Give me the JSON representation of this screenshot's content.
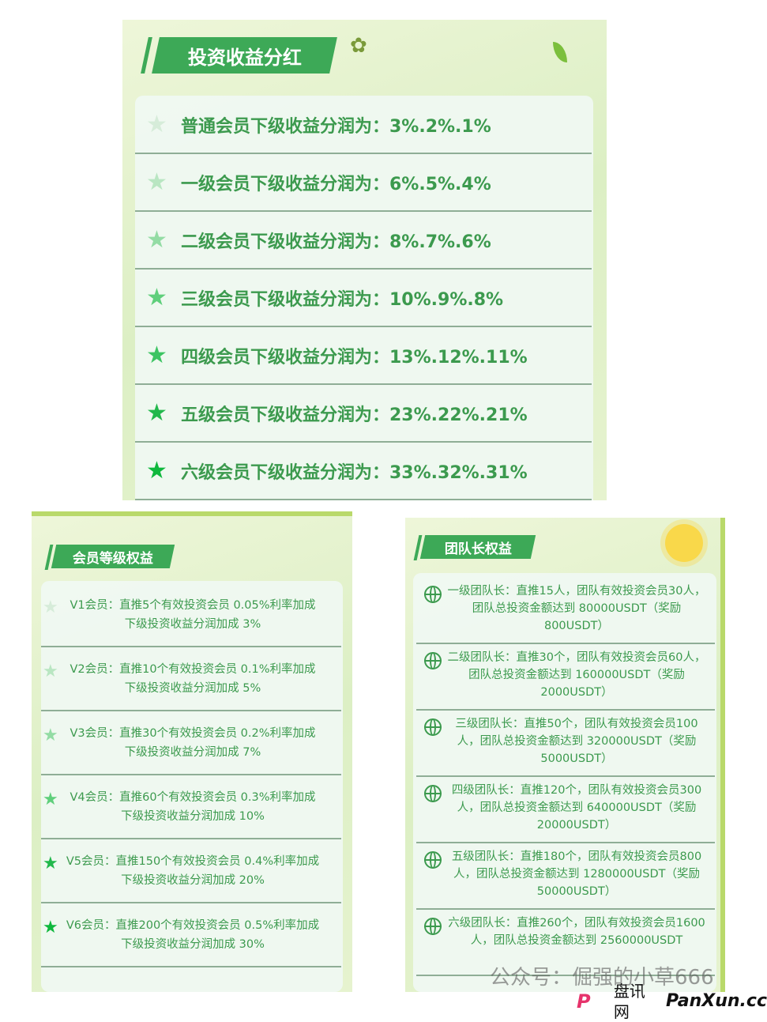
{
  "top_panel": {
    "title": "投资收益分红",
    "rows": [
      {
        "text": "普通会员下级收益分润为：3%.2%.1%",
        "star_color": "#d6ecd9"
      },
      {
        "text": "一级会员下级收益分润为：6%.5%.4%",
        "star_color": "#b9e6c2"
      },
      {
        "text": "二级会员下级收益分润为：8%.7%.6%",
        "star_color": "#93dca4"
      },
      {
        "text": "三级会员下级收益分润为：10%.9%.8%",
        "star_color": "#5fcf7b"
      },
      {
        "text": "四级会员下级收益分润为：13%.12%.11%",
        "star_color": "#3cc462"
      },
      {
        "text": "五级会员下级收益分润为：23%.22%.21%",
        "star_color": "#22b84c"
      },
      {
        "text": "六级会员下级收益分润为：33%.32%.31%",
        "star_color": "#0fb83d"
      }
    ]
  },
  "member_panel": {
    "title": "会员等级权益",
    "rows": [
      {
        "text": "V1会员：直推5个有效投资会员 0.05%利率加成　下级投资收益分润加成 3%",
        "star_color": "#d6ecd9"
      },
      {
        "text": "V2会员：直推10个有效投资会员 0.1%利率加成　下级投资收益分润加成 5%",
        "star_color": "#b9e6c2"
      },
      {
        "text": "V3会员：直推30个有效投资会员 0.2%利率加成　下级投资收益分润加成 7%",
        "star_color": "#93dca4"
      },
      {
        "text": "V4会员：直推60个有效投资会员 0.3%利率加成　下级投资收益分润加成 10%",
        "star_color": "#5fcf7b"
      },
      {
        "text": "V5会员：直推150个有效投资会员 0.4%利率加成　下级投资收益分润加成 20%",
        "star_color": "#22b84c"
      },
      {
        "text": "V6会员：直推200个有效投资会员 0.5%利率加成　下级投资收益分润加成 30%",
        "star_color": "#0fb83d"
      }
    ]
  },
  "leader_panel": {
    "title": "团队长权益",
    "rows": [
      {
        "text": "一级团队长：直推15人，团队有效投资会员30人，团队总投资金额达到 80000USDT（奖励800USDT）"
      },
      {
        "text": "二级团队长：直推30个，团队有效投资会员60人，团队总投资金额达到 160000USDT（奖励2000USDT）"
      },
      {
        "text": "三级团队长：直推50个，团队有效投资会员100人，团队总投资金额达到 320000USDT（奖励5000USDT）"
      },
      {
        "text": "四级团队长：直推120个，团队有效投资会员300人，团队总投资金额达到 640000USDT（奖励20000USDT）"
      },
      {
        "text": "五级团队长：直推180个，团队有效投资会员800人，团队总投资金额达到 1280000USDT（奖励50000USDT）"
      },
      {
        "text": "六级团队长：直推260个，团队有效投资会员1600人，团队总投资金额达到 2560000USDT"
      }
    ]
  },
  "watermark": {
    "text": "公众号：倔强的小草666",
    "logo_cn": "盘讯网",
    "logo_en": "PanXun.cc",
    "logo_mark": "P"
  }
}
